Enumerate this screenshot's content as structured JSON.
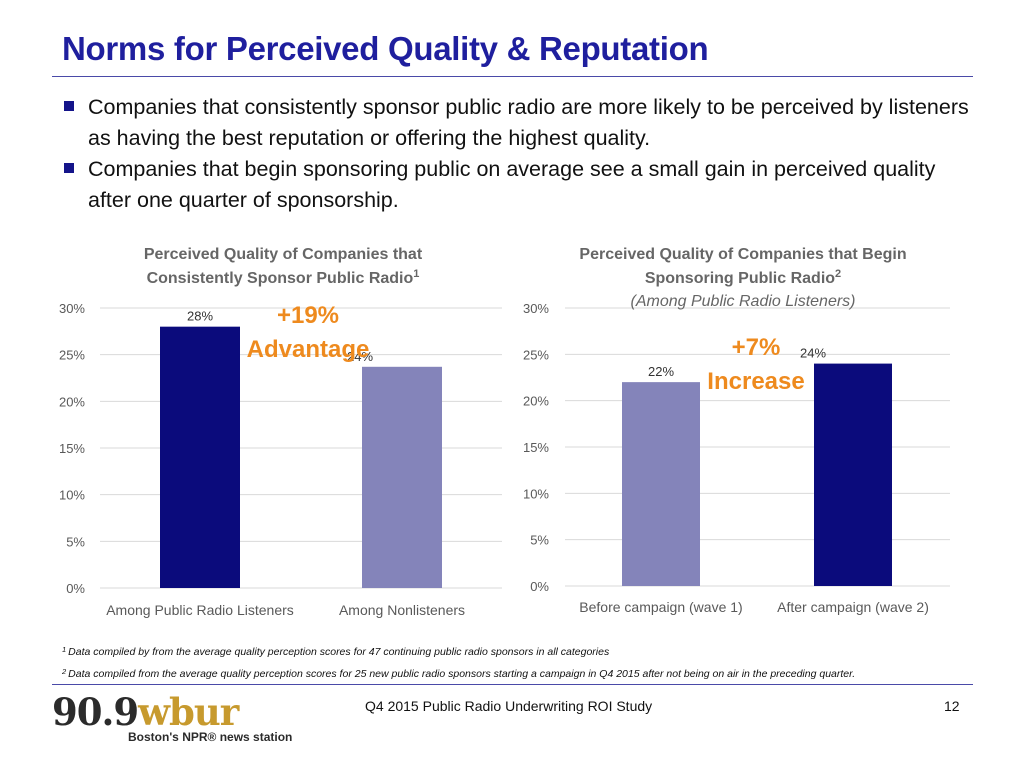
{
  "slide": {
    "title": "Norms for Perceived Quality & Reputation",
    "bullets": [
      "Companies that consistently sponsor public radio are more likely to be perceived by listeners as having the best reputation or offering the highest quality.",
      "Companies that begin sponsoring public on average see a small gain in perceived quality after one quarter of sponsorship."
    ],
    "footnotes": [
      {
        "mark": "1",
        "text": "Data compiled by from the average quality perception scores for 47 continuing public radio sponsors in all categories"
      },
      {
        "mark": "2",
        "text": "Data compiled from the average quality perception scores for 25 new public radio sponsors starting a campaign in Q4 2015 after not being on air in the preceding quarter."
      }
    ],
    "footer": {
      "study": "Q4 2015 Public Radio Underwriting ROI Study",
      "page": "12",
      "logo_number": "90.9",
      "logo_brand": "wbur",
      "logo_tagline": "Boston's NPR® news station"
    }
  },
  "colors": {
    "title": "#1f1f9e",
    "dark_bar": "#0b0b7c",
    "light_bar": "#8484ba",
    "callout": "#ee8a1e",
    "grid": "#d9d9d9",
    "axis_text": "#595959",
    "chart_title": "#666666"
  },
  "chart_data": [
    {
      "type": "bar",
      "title_lines": [
        "Perceived Quality of Companies that",
        "Consistently Sponsor Public Radio"
      ],
      "title_superscript": "1",
      "categories": [
        "Among Public Radio Listeners",
        "Among Nonlisteners"
      ],
      "values": [
        28,
        23.7
      ],
      "data_labels": [
        "28%",
        "24%"
      ],
      "bar_colors": [
        "#0b0b7c",
        "#8484ba"
      ],
      "yticks": [
        "0%",
        "5%",
        "10%",
        "15%",
        "20%",
        "25%",
        "30%"
      ],
      "ylim": [
        0,
        30
      ],
      "grid": true,
      "annotation_lines": [
        "+19%",
        "Advantage"
      ]
    },
    {
      "type": "bar",
      "title_lines": [
        "Perceived Quality of Companies that Begin",
        "Sponsoring  Public Radio"
      ],
      "title_superscript": "2",
      "subtitle": "(Among Public Radio Listeners)",
      "categories": [
        "Before campaign (wave 1)",
        "After campaign (wave 2)"
      ],
      "values": [
        22,
        24
      ],
      "data_labels": [
        "22%",
        "24%"
      ],
      "bar_colors": [
        "#8484ba",
        "#0b0b7c"
      ],
      "yticks": [
        "0%",
        "5%",
        "10%",
        "15%",
        "20%",
        "25%",
        "30%"
      ],
      "ylim": [
        0,
        30
      ],
      "grid": true,
      "annotation_lines": [
        "+7%",
        "Increase"
      ]
    }
  ]
}
